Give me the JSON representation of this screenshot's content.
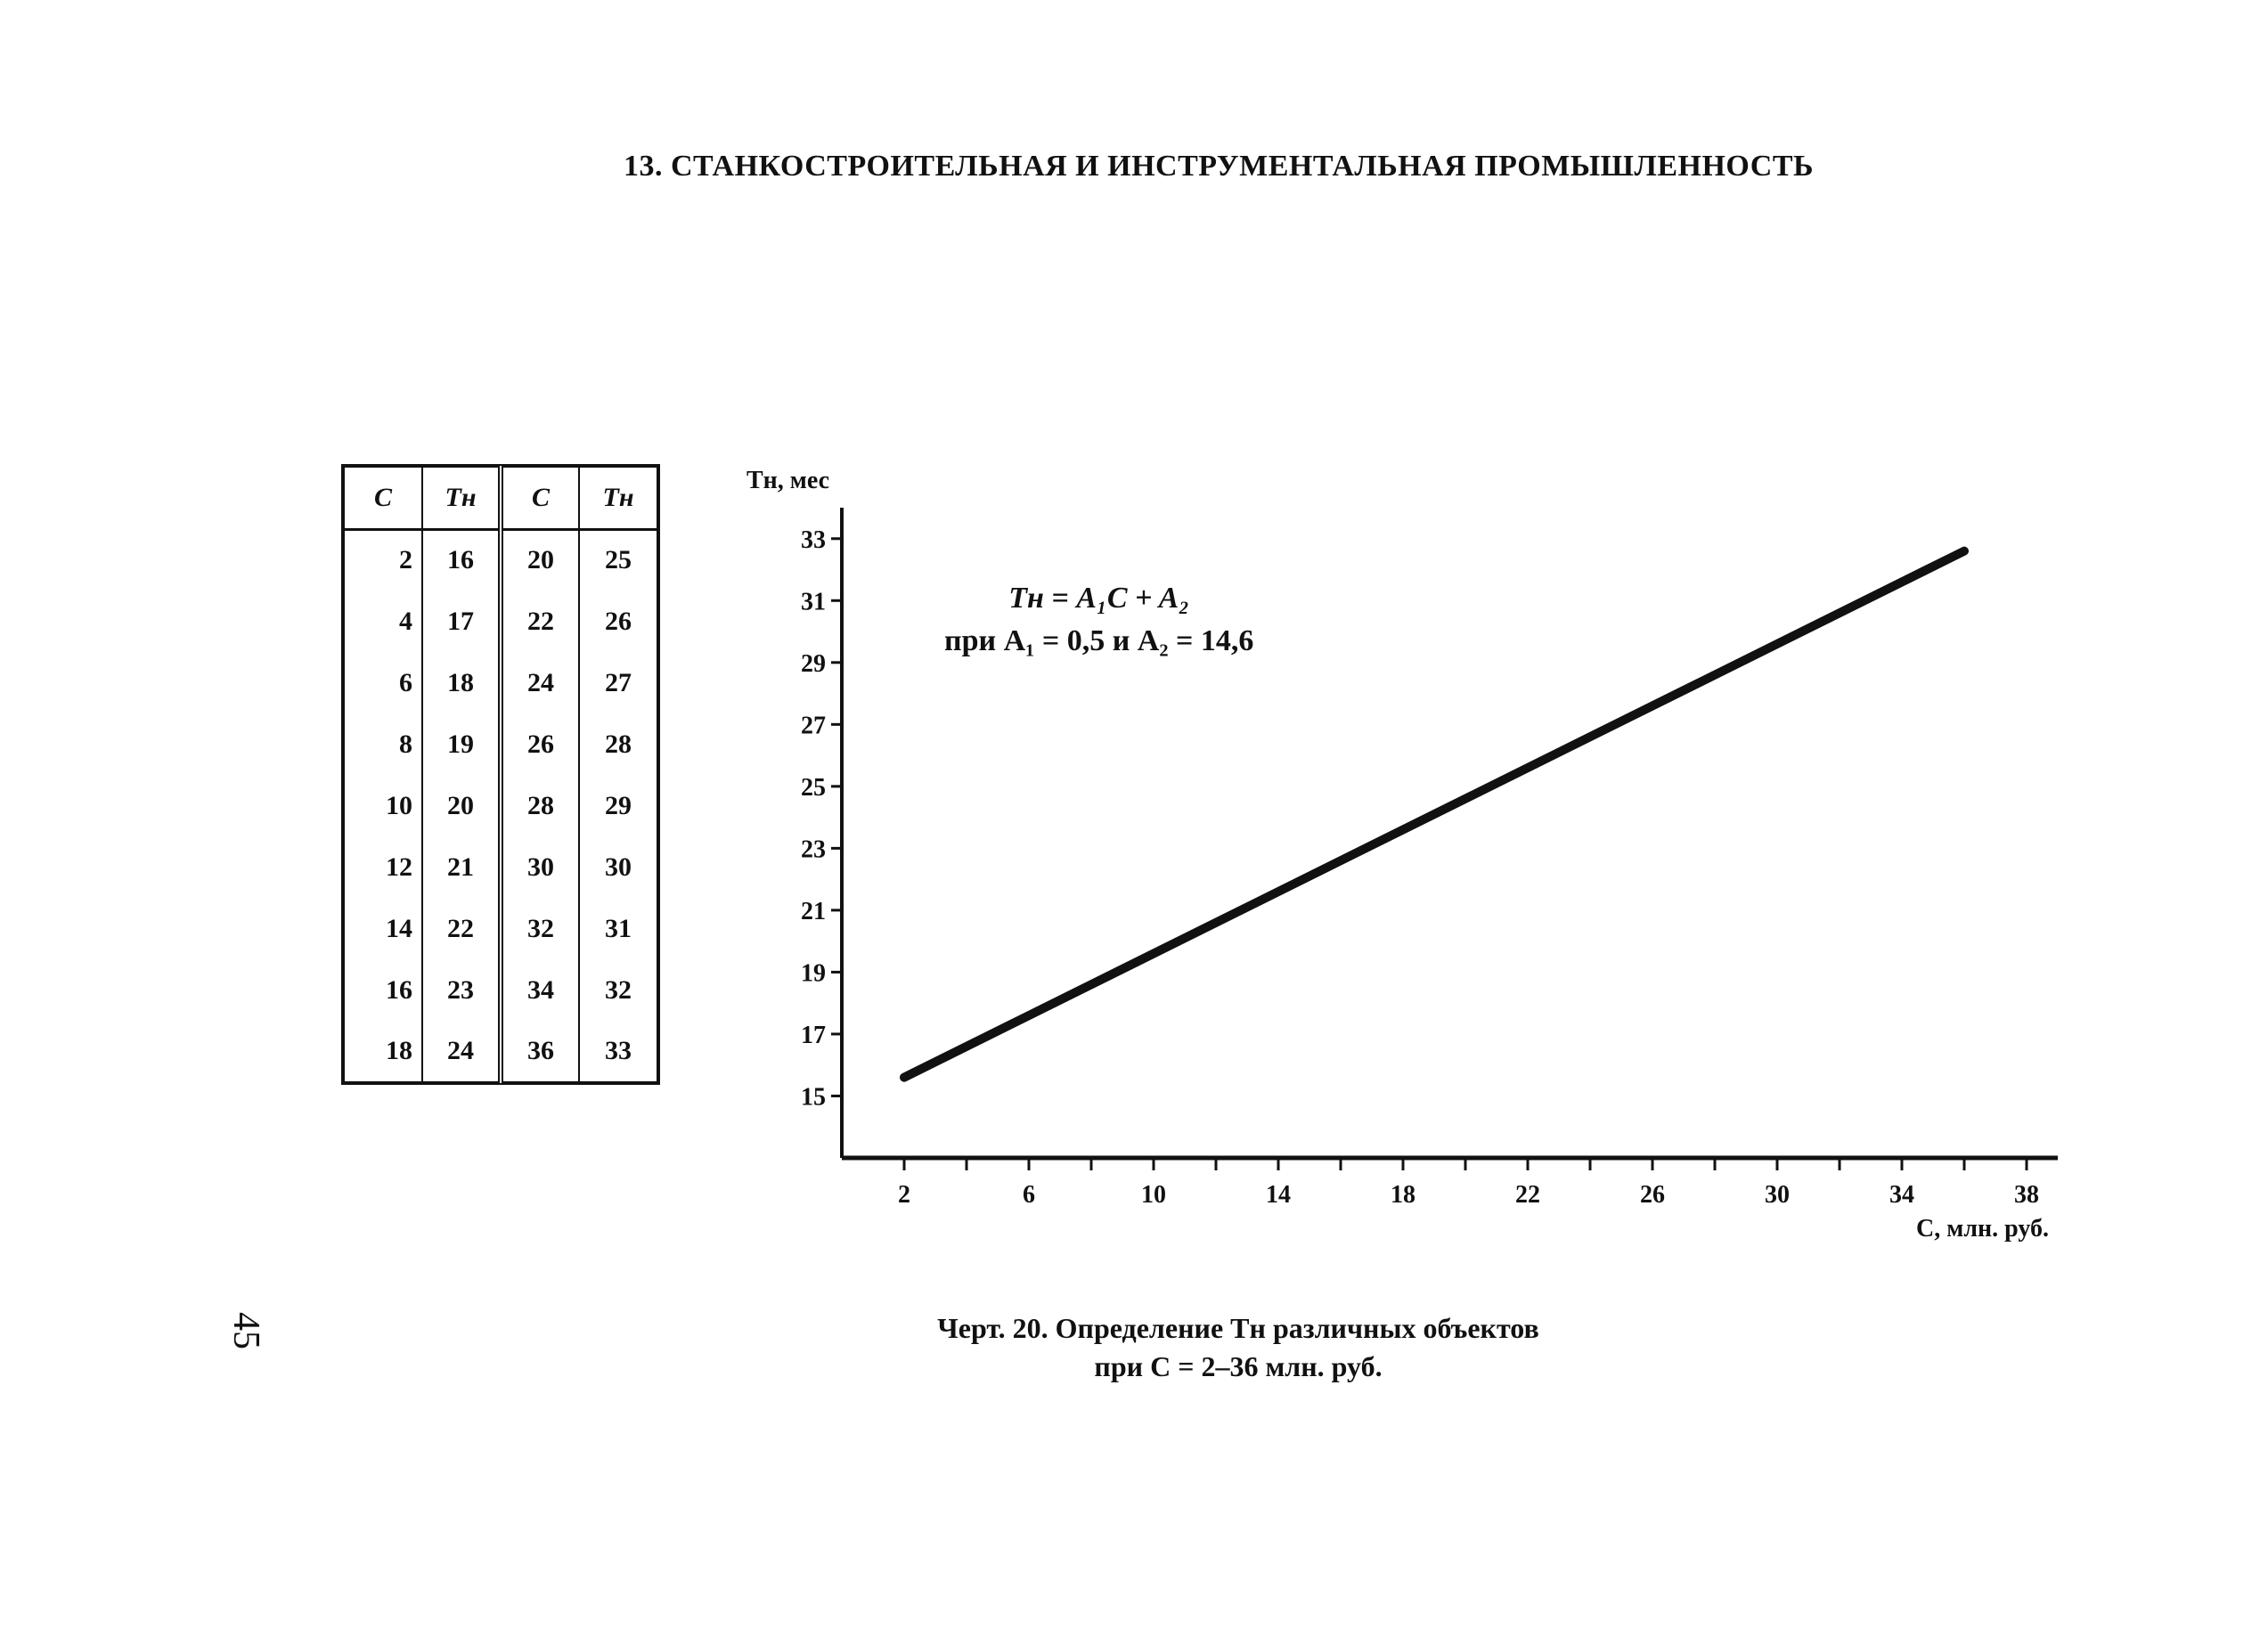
{
  "page": {
    "title": "13. СТАНКОСТРОИТЕЛЬНАЯ И ИНСТРУМЕНТАЛЬНАЯ ПРОМЫШЛЕННОСТЬ",
    "page_number": "45"
  },
  "table": {
    "headers": [
      "C",
      "Tн",
      "C",
      "Tн"
    ],
    "rows": [
      [
        "2",
        "16",
        "20",
        "25"
      ],
      [
        "4",
        "17",
        "22",
        "26"
      ],
      [
        "6",
        "18",
        "24",
        "27"
      ],
      [
        "8",
        "19",
        "26",
        "28"
      ],
      [
        "10",
        "20",
        "28",
        "29"
      ],
      [
        "12",
        "21",
        "30",
        "30"
      ],
      [
        "14",
        "22",
        "32",
        "31"
      ],
      [
        "16",
        "23",
        "34",
        "32"
      ],
      [
        "18",
        "24",
        "36",
        "33"
      ]
    ]
  },
  "formula": {
    "line1": "Tн = A₁C + A₂",
    "line2": "при A₁ = 0,5 и A₂ = 14,6"
  },
  "caption": {
    "line1": "Черт. 20. Определение Tн различных объектов",
    "line2": "при C = 2–36 млн. руб."
  },
  "chart_data": {
    "type": "line",
    "xlabel": "C, млн. руб.",
    "ylabel": "Tн, мес",
    "xlim": [
      0,
      39
    ],
    "ylim": [
      13,
      34
    ],
    "x_ticks": [
      2,
      6,
      10,
      14,
      18,
      22,
      26,
      30,
      34,
      38
    ],
    "y_ticks": [
      15,
      17,
      19,
      21,
      23,
      25,
      27,
      29,
      31,
      33
    ],
    "series": [
      {
        "x": [
          2,
          36
        ],
        "y": [
          15.6,
          32.6
        ]
      }
    ],
    "grid": false,
    "line_color": "#111111"
  }
}
